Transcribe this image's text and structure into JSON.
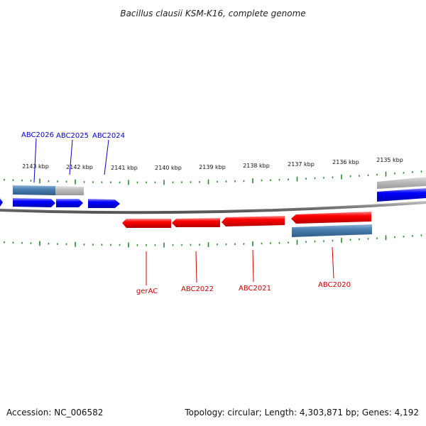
{
  "title": "Bacillus clausii KSM-K16, complete genome",
  "footer": {
    "accession": "Accession: NC_006582",
    "summary": "Topology: circular; Length: 4,303,871 bp; Genes: 4,192"
  },
  "colors": {
    "forward_gene": "#0000ff",
    "reverse_gene": "#ff0000",
    "forward_gene_label": "#0000cc",
    "reverse_gene_label": "#cc0000",
    "ticks": "#2a8a2a",
    "backbone": "#777777",
    "band_steelblue": "#4a7fb0",
    "band_gray": "#b4b4b4"
  },
  "scale_labels": [
    "2143 kbp",
    "2142 kbp",
    "2141 kbp",
    "2140 kbp",
    "2139 kbp",
    "2138 kbp",
    "2137 kbp",
    "2136 kbp",
    "2135 kbp"
  ],
  "genes": [
    {
      "name": "ABC2026",
      "strand": "forward"
    },
    {
      "name": "ABC2025",
      "strand": "forward"
    },
    {
      "name": "ABC2024",
      "strand": "forward"
    },
    {
      "name": "gerAC",
      "strand": "reverse"
    },
    {
      "name": "ABC2022",
      "strand": "reverse"
    },
    {
      "name": "ABC2021",
      "strand": "reverse"
    },
    {
      "name": "ABC2020",
      "strand": "reverse"
    }
  ]
}
